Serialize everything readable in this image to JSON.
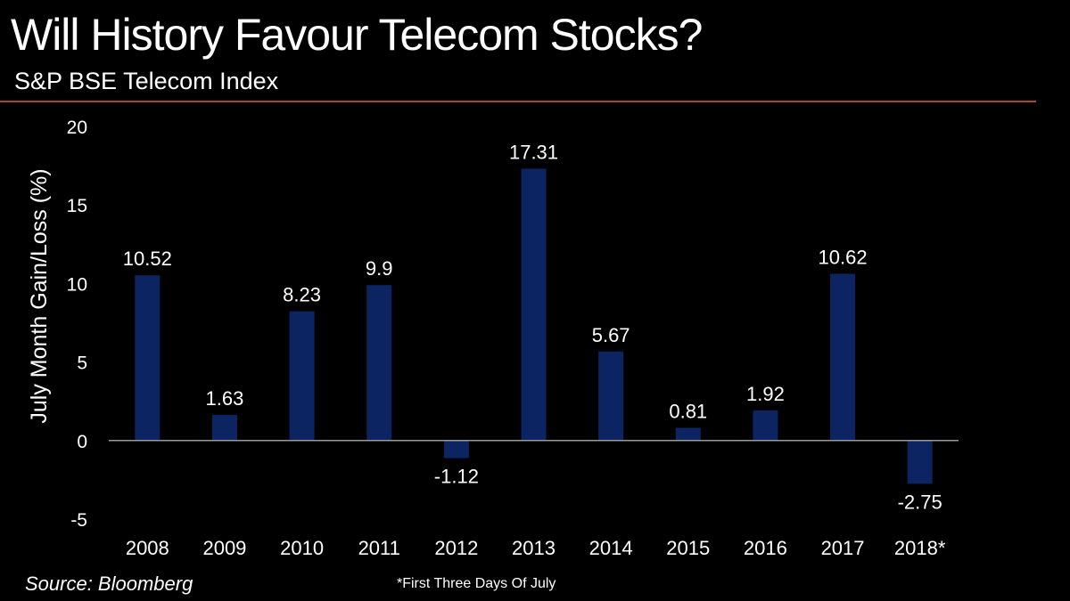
{
  "header": {
    "title": "Will History Favour Telecom Stocks?",
    "subtitle": "S&P BSE Telecom Index"
  },
  "footer": {
    "source": "Source: Bloomberg",
    "note": "*First Three Days Of July"
  },
  "colors": {
    "background": "#000000",
    "bar": "#0c2461",
    "rule": "#a4492a",
    "axis": "#9a9a9a",
    "text": "#ffffff"
  },
  "chart_data": {
    "type": "bar",
    "title": "Will History Favour Telecom Stocks?",
    "subtitle": "S&P BSE Telecom Index",
    "xlabel": "",
    "ylabel": "July Month Gain/Loss (%)",
    "categories": [
      "2008",
      "2009",
      "2010",
      "2011",
      "2012",
      "2013",
      "2014",
      "2015",
      "2016",
      "2017",
      "2018*"
    ],
    "values": [
      10.52,
      1.63,
      8.23,
      9.9,
      -1.12,
      17.31,
      5.67,
      0.81,
      1.92,
      10.62,
      -2.75
    ],
    "data_labels": [
      "10.52",
      "1.63",
      "8.23",
      "9.9",
      "-1.12",
      "17.31",
      "5.67",
      "0.81",
      "1.92",
      "10.62",
      "-2.75"
    ],
    "ylim": [
      -5,
      20
    ],
    "yticks": [
      -5,
      0,
      5,
      10,
      15,
      20
    ],
    "ytick_labels": [
      "-5",
      "0",
      "5",
      "10",
      "15",
      "20"
    ],
    "grid": false,
    "legend": "none"
  }
}
